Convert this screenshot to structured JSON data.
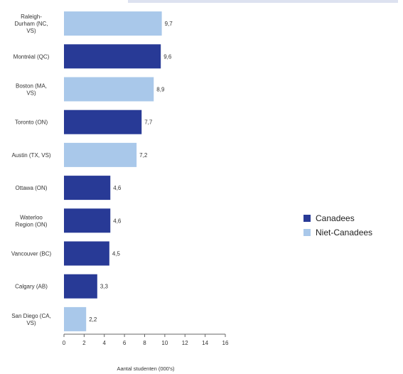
{
  "chart_data": {
    "type": "bar",
    "orientation": "horizontal",
    "title": "",
    "xlabel": "Aantal studenten (000's)",
    "ylabel": "",
    "xlim": [
      0,
      16
    ],
    "xticks": [
      0,
      2,
      4,
      6,
      8,
      10,
      12,
      14,
      16
    ],
    "categories": [
      [
        "Raleigh-",
        "Durham (NC,",
        "VS)"
      ],
      [
        "Montréal (QC)"
      ],
      [
        "Boston (MA,",
        "VS)"
      ],
      [
        "Toronto (ON)"
      ],
      [
        "Austin (TX, VS)"
      ],
      [
        "Ottawa (ON)"
      ],
      [
        "Waterloo",
        "Region (ON)"
      ],
      [
        "Vancouver (BC)"
      ],
      [
        "Calgary (AB)"
      ],
      [
        "San Diego (CA,",
        "VS)"
      ]
    ],
    "values": [
      9.7,
      9.6,
      8.9,
      7.7,
      7.2,
      4.6,
      4.6,
      4.5,
      3.3,
      2.2
    ],
    "value_labels": [
      "9,7",
      "9,6",
      "8,9",
      "7,7",
      "7,2",
      "4,6",
      "4,6",
      "4,5",
      "3,3",
      "2,2"
    ],
    "group": [
      "Niet-Canadees",
      "Canadees",
      "Niet-Canadees",
      "Canadees",
      "Niet-Canadees",
      "Canadees",
      "Canadees",
      "Canadees",
      "Canadees",
      "Niet-Canadees"
    ],
    "series": [
      {
        "name": "Canadees",
        "color": "#283a96"
      },
      {
        "name": "Niet-Canadees",
        "color": "#a9c8ea"
      }
    ],
    "legend_position": "right",
    "grid": false
  }
}
